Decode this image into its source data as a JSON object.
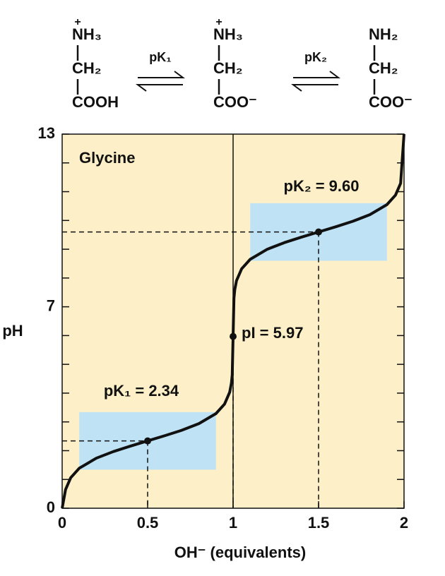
{
  "chart_data": {
    "type": "line",
    "title": "Glycine",
    "xlabel": "OH⁻  (equivalents)",
    "ylabel": "pH",
    "xlim": [
      0,
      2
    ],
    "ylim": [
      0,
      13
    ],
    "xticks": [
      0,
      0.5,
      1,
      1.5,
      2
    ],
    "yticks": [
      0,
      7,
      13
    ],
    "yminorticks": [
      1,
      2,
      3,
      4,
      5,
      6,
      8,
      9,
      10,
      11,
      12
    ],
    "background": "#fdf0c8",
    "series": [
      {
        "color": "#111111",
        "x": [
          0,
          0.02,
          0.05,
          0.1,
          0.2,
          0.3,
          0.4,
          0.5,
          0.6,
          0.7,
          0.8,
          0.9,
          0.95,
          0.98,
          0.99,
          0.995,
          1.0,
          1.005,
          1.01,
          1.02,
          1.05,
          1.1,
          1.2,
          1.3,
          1.4,
          1.5,
          1.6,
          1.7,
          1.8,
          1.9,
          1.95,
          1.98,
          2.0
        ],
        "values": [
          0,
          0.65,
          1.06,
          1.39,
          1.74,
          1.97,
          2.16,
          2.34,
          2.52,
          2.71,
          2.94,
          3.29,
          3.62,
          4.03,
          4.34,
          4.64,
          5.97,
          7.3,
          7.6,
          7.91,
          8.32,
          8.65,
          9.0,
          9.23,
          9.42,
          9.6,
          9.78,
          9.97,
          10.2,
          10.55,
          10.88,
          11.29,
          13
        ]
      }
    ],
    "reference_x": 1,
    "buffer_regions": [
      {
        "color": "#bfe3f5",
        "xlim": [
          0.1,
          0.9
        ],
        "ylim": [
          1.34,
          3.34
        ]
      },
      {
        "color": "#bfe3f5",
        "xlim": [
          1.1,
          1.9
        ],
        "ylim": [
          8.6,
          10.6
        ]
      }
    ],
    "points": [
      {
        "x": 0.5,
        "y": 2.34,
        "label": "pK₁ = 2.34"
      },
      {
        "x": 1,
        "y": 5.97,
        "label": "pI = 5.97"
      },
      {
        "x": 1.5,
        "y": 9.6,
        "label": "pK₂ = 9.60"
      }
    ],
    "structures": [
      {
        "charge": "+",
        "lines": [
          "NH₃",
          "CH₂",
          "COOH"
        ]
      },
      {
        "charge": "+",
        "lines": [
          "NH₃",
          "CH₂",
          "COO⁻"
        ]
      },
      {
        "lines": [
          "NH₂",
          "CH₂",
          "COO⁻"
        ]
      }
    ],
    "equilibria": [
      "pK₁",
      "pK₂"
    ]
  }
}
